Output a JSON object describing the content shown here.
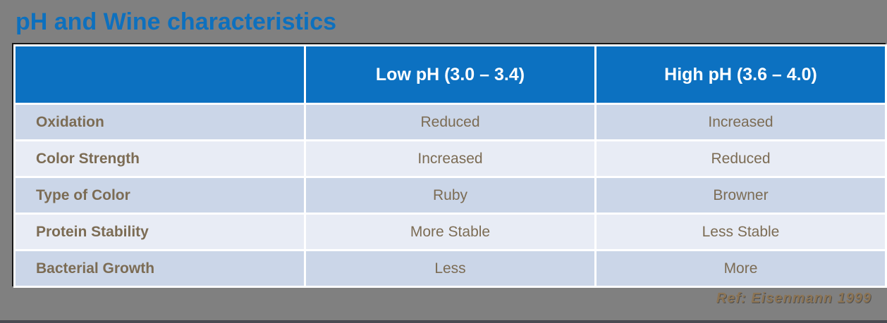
{
  "slide": {
    "title": "pH and Wine characteristics",
    "reference": "Ref: Eisenmann 1999"
  },
  "table": {
    "columns": [
      "",
      "Low pH (3.0 – 3.4)",
      "High pH (3.6 – 4.0)"
    ],
    "rows": [
      {
        "label": "Oxidation",
        "low": "Reduced",
        "high": "Increased"
      },
      {
        "label": "Color Strength",
        "low": "Increased",
        "high": "Reduced"
      },
      {
        "label": "Type of Color",
        "low": "Ruby",
        "high": "Browner"
      },
      {
        "label": "Protein Stability",
        "low": "More Stable",
        "high": "Less Stable"
      },
      {
        "label": "Bacterial Growth",
        "low": "Less",
        "high": "More"
      }
    ]
  },
  "colors": {
    "background": "#808080",
    "accent_blue": "#0c71c1",
    "row_odd": "#cbd6e8",
    "row_even": "#e8ecf5",
    "text_brown": "#7c6c54",
    "header_text": "#ffffff"
  }
}
